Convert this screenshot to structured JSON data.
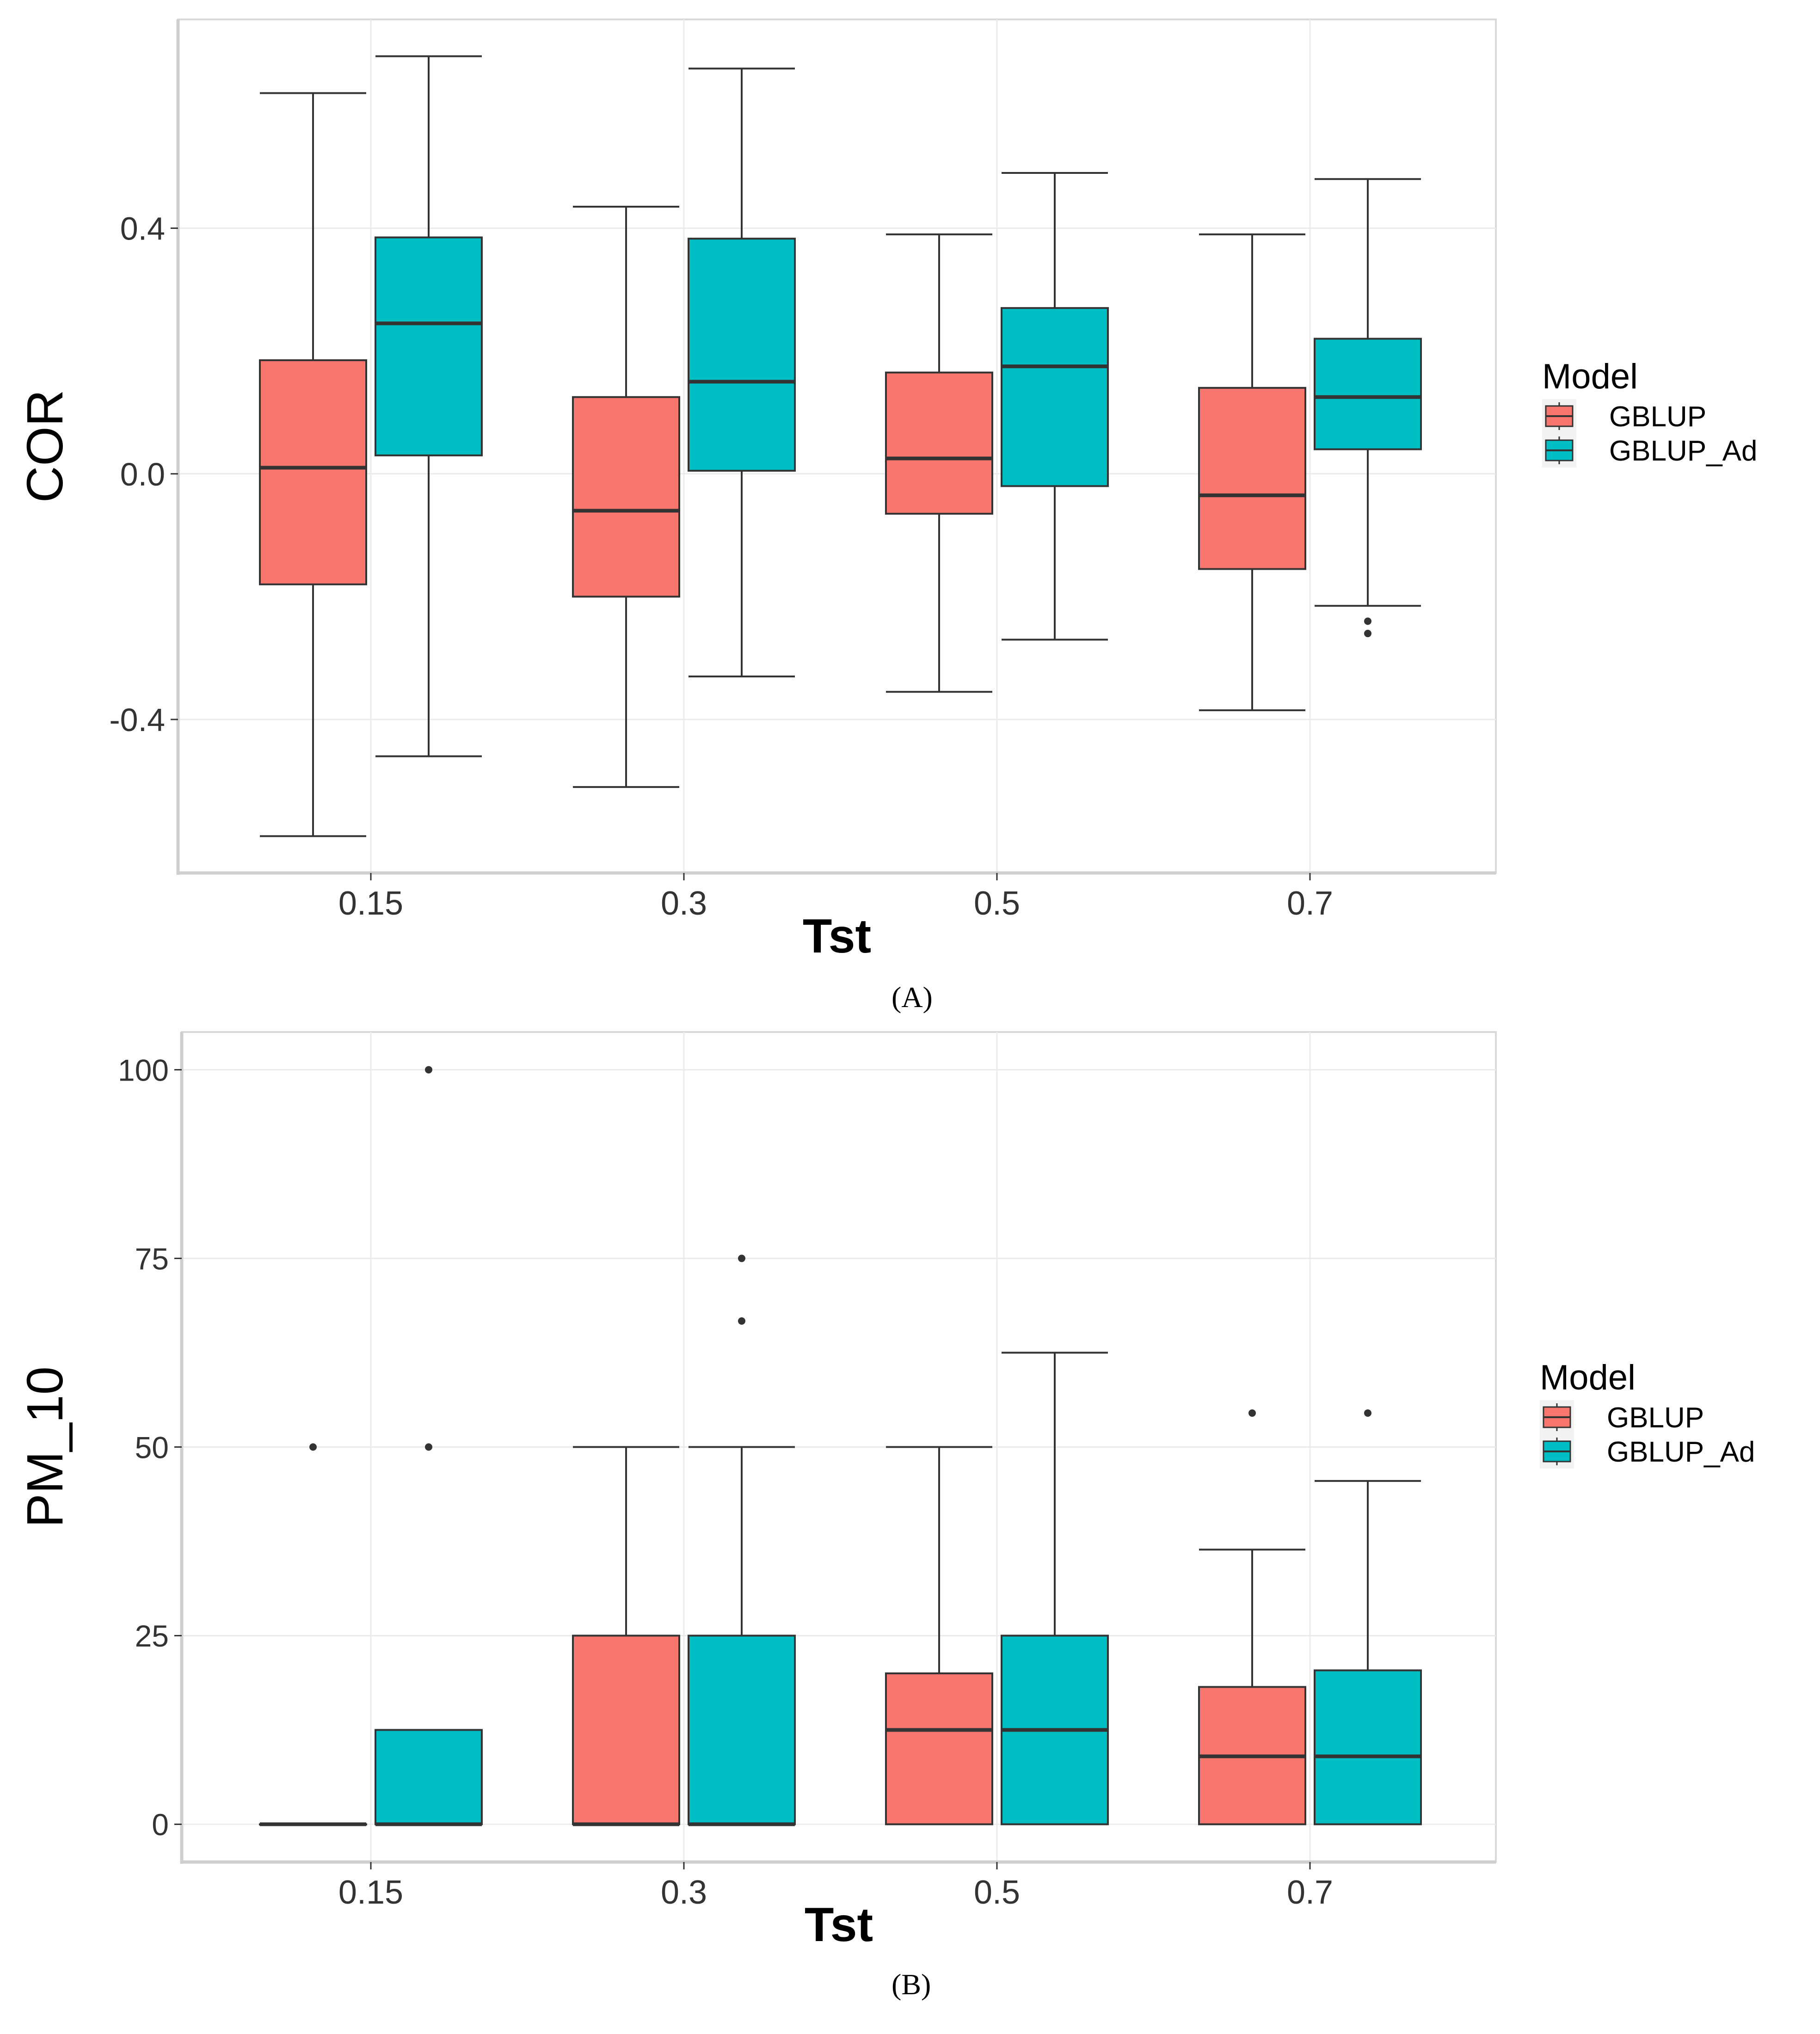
{
  "colors": {
    "gblup": "#F8766D",
    "gblup_ad": "#00BFC4",
    "grid": "#EBEBEB",
    "panel_border": "#D9D9D9",
    "axis": "#CFCFCF"
  },
  "panel_labels": [
    "(A)",
    "(B)"
  ],
  "chart_data": [
    {
      "type": "boxplot",
      "xlabel": "Tst",
      "ylabel": "COR",
      "ylim": [
        -0.65,
        0.74
      ],
      "yticks": [
        -0.4,
        0.0,
        0.4
      ],
      "ytick_labels": [
        "-0.4",
        "0.0",
        "0.4"
      ],
      "categories": [
        "0.15",
        "0.3",
        "0.5",
        "0.7"
      ],
      "legend": {
        "title": "Model",
        "entries": [
          "GBLUP",
          "GBLUP_Ad"
        ],
        "placement": "right"
      },
      "series": [
        {
          "name": "GBLUP",
          "boxes": [
            {
              "min": -0.59,
              "q1": -0.18,
              "median": 0.01,
              "q3": 0.185,
              "max": 0.62,
              "outliers": []
            },
            {
              "min": -0.51,
              "q1": -0.2,
              "median": -0.06,
              "q3": 0.125,
              "max": 0.435,
              "outliers": []
            },
            {
              "min": -0.355,
              "q1": -0.065,
              "median": 0.025,
              "q3": 0.165,
              "max": 0.39,
              "outliers": []
            },
            {
              "min": -0.385,
              "q1": -0.155,
              "median": -0.035,
              "q3": 0.14,
              "max": 0.39,
              "outliers": []
            }
          ]
        },
        {
          "name": "GBLUP_Ad",
          "boxes": [
            {
              "min": -0.46,
              "q1": 0.03,
              "median": 0.245,
              "q3": 0.385,
              "max": 0.68,
              "outliers": []
            },
            {
              "min": -0.33,
              "q1": 0.005,
              "median": 0.15,
              "q3": 0.383,
              "max": 0.66,
              "outliers": []
            },
            {
              "min": -0.27,
              "q1": -0.02,
              "median": 0.175,
              "q3": 0.27,
              "max": 0.49,
              "outliers": []
            },
            {
              "min": -0.215,
              "q1": 0.04,
              "median": 0.125,
              "q3": 0.22,
              "max": 0.48,
              "outliers": [
                -0.24,
                -0.26
              ]
            }
          ]
        }
      ]
    },
    {
      "type": "boxplot",
      "xlabel": "Tst",
      "ylabel": "PM_10",
      "ylim": [
        -5,
        105
      ],
      "yticks": [
        0,
        25,
        50,
        75,
        100
      ],
      "ytick_labels": [
        "0",
        "25",
        "50",
        "75",
        "100"
      ],
      "categories": [
        "0.15",
        "0.3",
        "0.5",
        "0.7"
      ],
      "legend": {
        "title": "Model",
        "entries": [
          "GBLUP",
          "GBLUP_Ad"
        ],
        "placement": "right"
      },
      "series": [
        {
          "name": "GBLUP",
          "boxes": [
            {
              "min": 0,
              "q1": 0,
              "median": 0,
              "q3": 0,
              "max": 0,
              "outliers": [
                50
              ]
            },
            {
              "min": 0,
              "q1": 0,
              "median": 0,
              "q3": 25,
              "max": 50,
              "outliers": []
            },
            {
              "min": 0,
              "q1": 0,
              "median": 12.5,
              "q3": 20,
              "max": 50,
              "outliers": []
            },
            {
              "min": 0,
              "q1": 0,
              "median": 9,
              "q3": 18.2,
              "max": 36.4,
              "outliers": [
                54.5
              ]
            }
          ]
        },
        {
          "name": "GBLUP_Ad",
          "boxes": [
            {
              "min": 0,
              "q1": 0,
              "median": 0,
              "q3": 12.5,
              "max": 12.5,
              "outliers": [
                50,
                100
              ]
            },
            {
              "min": 0,
              "q1": 0,
              "median": 0,
              "q3": 25,
              "max": 50,
              "outliers": [
                66.7,
                75
              ]
            },
            {
              "min": 0,
              "q1": 0,
              "median": 12.5,
              "q3": 25,
              "max": 62.5,
              "outliers": []
            },
            {
              "min": 0,
              "q1": 0,
              "median": 9,
              "q3": 20.4,
              "max": 45.5,
              "outliers": [
                54.5
              ]
            }
          ]
        }
      ]
    }
  ]
}
